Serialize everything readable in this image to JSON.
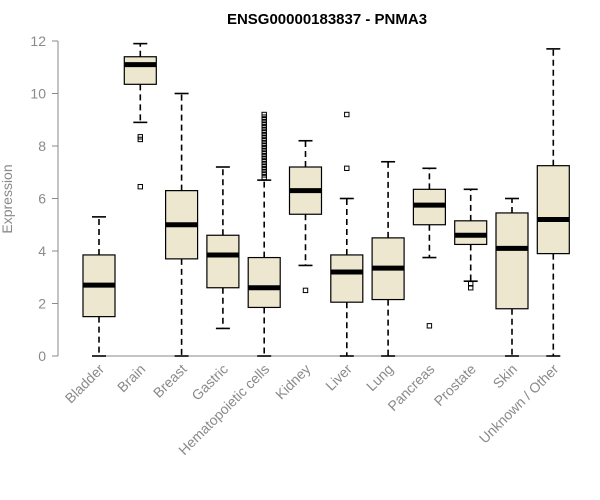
{
  "chart_data": {
    "type": "boxplot",
    "title": "ENSG00000183837 - PNMA3",
    "xlabel": "",
    "ylabel": "Expression",
    "ylim": [
      0,
      12
    ],
    "yticks": [
      0,
      2,
      4,
      6,
      8,
      10,
      12
    ],
    "grid": false,
    "categories": [
      "Bladder",
      "Brain",
      "Breast",
      "Gastric",
      "Hematopoietic cells",
      "Kidney",
      "Liver",
      "Lung",
      "Pancreas",
      "Prostate",
      "Skin",
      "Unknown / Other"
    ],
    "boxes": [
      {
        "category": "Bladder",
        "min": 0,
        "q1": 1.5,
        "median": 2.7,
        "q3": 3.85,
        "max": 5.3,
        "outliers": []
      },
      {
        "category": "Brain",
        "min": 8.9,
        "q1": 10.35,
        "median": 11.1,
        "q3": 11.4,
        "max": 11.9,
        "outliers": [
          8.25,
          8.35,
          6.45
        ]
      },
      {
        "category": "Breast",
        "min": 0,
        "q1": 3.7,
        "median": 5.0,
        "q3": 6.3,
        "max": 10.0,
        "outliers": []
      },
      {
        "category": "Gastric",
        "min": 1.05,
        "q1": 2.6,
        "median": 3.85,
        "q3": 4.6,
        "max": 7.2,
        "outliers": []
      },
      {
        "category": "Hematopoietic cells",
        "min": 0,
        "q1": 1.85,
        "median": 2.6,
        "q3": 3.75,
        "max": 6.7,
        "outliers": [
          6.8,
          6.9,
          7.0,
          7.1,
          7.2,
          7.3,
          7.4,
          7.5,
          7.6,
          7.7,
          7.8,
          7.9,
          8.0,
          8.1,
          8.2,
          8.3,
          8.4,
          8.5,
          8.6,
          8.7,
          8.8,
          8.9,
          9.0,
          9.1,
          9.2
        ]
      },
      {
        "category": "Kidney",
        "min": 3.45,
        "q1": 5.4,
        "median": 6.3,
        "q3": 7.2,
        "max": 8.2,
        "outliers": [
          2.5
        ]
      },
      {
        "category": "Liver",
        "min": 0,
        "q1": 2.05,
        "median": 3.2,
        "q3": 3.85,
        "max": 6.0,
        "outliers": [
          7.15,
          9.2
        ]
      },
      {
        "category": "Lung",
        "min": 0,
        "q1": 2.15,
        "median": 3.35,
        "q3": 4.5,
        "max": 7.4,
        "outliers": []
      },
      {
        "category": "Pancreas",
        "min": 3.75,
        "q1": 5.0,
        "median": 5.75,
        "q3": 6.35,
        "max": 7.15,
        "outliers": [
          1.15
        ]
      },
      {
        "category": "Prostate",
        "min": 2.85,
        "q1": 4.25,
        "median": 4.6,
        "q3": 5.15,
        "max": 6.35,
        "outliers": [
          2.6,
          2.75
        ]
      },
      {
        "category": "Skin",
        "min": 0,
        "q1": 1.8,
        "median": 4.1,
        "q3": 5.45,
        "max": 6.0,
        "outliers": []
      },
      {
        "category": "Unknown / Other",
        "min": 0,
        "q1": 3.9,
        "median": 5.2,
        "q3": 7.25,
        "max": 11.7,
        "outliers": []
      }
    ]
  }
}
